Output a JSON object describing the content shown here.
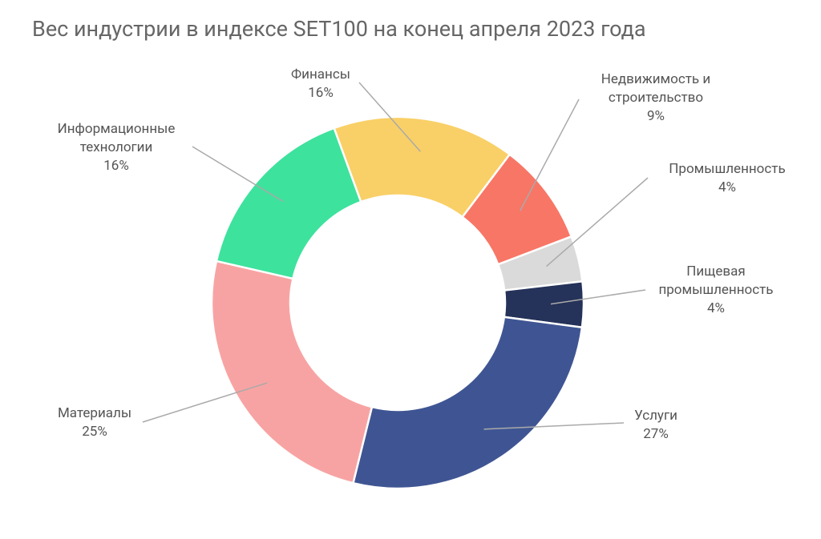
{
  "chart_data": {
    "type": "pie",
    "title": "Вес индустрии в индексе SET100 на конец апреля 2023 года",
    "categories": [
      "Финансы",
      "Недвижимость и строительство",
      "Промышленность",
      "Пищевая промышленность",
      "Услуги",
      "Материалы",
      "Информационные технологии"
    ],
    "values": [
      16,
      9,
      4,
      4,
      27,
      25,
      16
    ],
    "value_labels": [
      "16%",
      "9%",
      "4%",
      "4%",
      "27%",
      "25%",
      "16%"
    ],
    "colors": [
      "#f9d067",
      "#f87666",
      "#d9dad9",
      "#253259",
      "#3f5593",
      "#f8a3a3",
      "#3de29d"
    ]
  }
}
